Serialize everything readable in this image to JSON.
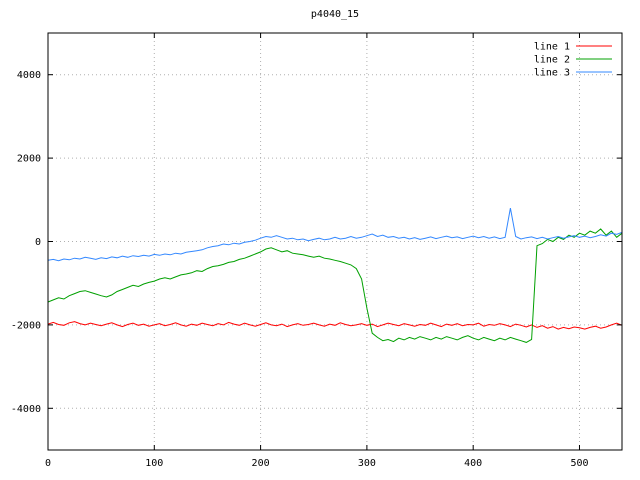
{
  "chart_data": {
    "type": "line",
    "title": "p4040_15",
    "xlabel": "",
    "ylabel": "",
    "xlim": [
      0,
      540
    ],
    "ylim": [
      -5000,
      5000
    ],
    "x_ticks": [
      0,
      100,
      200,
      300,
      400,
      500
    ],
    "y_ticks": [
      -4000,
      -2000,
      0,
      2000,
      4000
    ],
    "grid": true,
    "grid_style": "dotted",
    "legend_position": "top-right-inside",
    "x_start": 0,
    "x_step": 5,
    "colors": {
      "border": "#000000",
      "grid": "#b0b0b0",
      "background": "#ffffff"
    },
    "series": [
      {
        "name": "line 1",
        "color": "#ff0000",
        "values": [
          -1980,
          -1940,
          -1990,
          -2010,
          -1950,
          -1920,
          -1970,
          -2000,
          -1960,
          -1990,
          -2020,
          -1980,
          -1950,
          -2000,
          -2040,
          -1990,
          -1960,
          -2010,
          -1980,
          -2030,
          -2000,
          -1970,
          -2020,
          -1990,
          -1950,
          -2000,
          -2030,
          -1980,
          -2010,
          -1960,
          -1990,
          -2020,
          -1970,
          -2000,
          -1940,
          -1980,
          -2010,
          -1960,
          -2000,
          -2030,
          -1990,
          -1950,
          -2000,
          -2020,
          -1980,
          -2040,
          -2000,
          -1970,
          -2010,
          -1990,
          -1960,
          -2000,
          -2030,
          -1980,
          -2010,
          -1950,
          -1990,
          -2020,
          -2000,
          -1970,
          -2010,
          -1980,
          -2040,
          -2000,
          -1960,
          -1990,
          -2020,
          -1970,
          -2000,
          -2030,
          -1990,
          -2010,
          -1960,
          -2000,
          -2040,
          -1980,
          -2010,
          -1970,
          -2020,
          -1990,
          -2000,
          -1960,
          -2030,
          -1990,
          -2010,
          -1970,
          -2000,
          -2040,
          -1980,
          -2010,
          -2050,
          -2000,
          -2060,
          -2020,
          -2080,
          -2040,
          -2100,
          -2060,
          -2090,
          -2050,
          -2070,
          -2100,
          -2060,
          -2030,
          -2080,
          -2050,
          -2000,
          -1960,
          -2010
        ]
      },
      {
        "name": "line 2",
        "color": "#00a000",
        "values": [
          -1450,
          -1400,
          -1350,
          -1380,
          -1300,
          -1250,
          -1200,
          -1180,
          -1220,
          -1260,
          -1300,
          -1330,
          -1280,
          -1200,
          -1150,
          -1100,
          -1050,
          -1080,
          -1020,
          -980,
          -950,
          -900,
          -870,
          -900,
          -850,
          -800,
          -780,
          -750,
          -700,
          -720,
          -650,
          -600,
          -580,
          -550,
          -500,
          -480,
          -430,
          -400,
          -350,
          -300,
          -250,
          -180,
          -150,
          -200,
          -250,
          -220,
          -280,
          -300,
          -320,
          -350,
          -380,
          -350,
          -400,
          -420,
          -450,
          -480,
          -520,
          -560,
          -650,
          -900,
          -1600,
          -2200,
          -2300,
          -2380,
          -2350,
          -2400,
          -2320,
          -2360,
          -2300,
          -2340,
          -2280,
          -2320,
          -2360,
          -2300,
          -2340,
          -2280,
          -2320,
          -2360,
          -2300,
          -2260,
          -2320,
          -2360,
          -2300,
          -2340,
          -2380,
          -2320,
          -2360,
          -2300,
          -2340,
          -2380,
          -2420,
          -2350,
          -100,
          -50,
          50,
          0,
          100,
          50,
          150,
          100,
          200,
          150,
          250,
          200,
          300,
          150,
          250,
          100,
          200
        ]
      },
      {
        "name": "line 3",
        "color": "#3388ff",
        "values": [
          -450,
          -430,
          -460,
          -420,
          -440,
          -400,
          -420,
          -380,
          -400,
          -430,
          -390,
          -410,
          -370,
          -390,
          -350,
          -380,
          -340,
          -360,
          -330,
          -350,
          -310,
          -330,
          -300,
          -320,
          -280,
          -300,
          -260,
          -240,
          -220,
          -200,
          -150,
          -120,
          -100,
          -60,
          -80,
          -40,
          -60,
          -20,
          0,
          30,
          80,
          120,
          100,
          140,
          100,
          60,
          80,
          40,
          60,
          20,
          50,
          80,
          40,
          60,
          100,
          60,
          80,
          120,
          80,
          100,
          140,
          180,
          120,
          150,
          100,
          120,
          80,
          100,
          60,
          90,
          50,
          80,
          110,
          70,
          100,
          130,
          90,
          110,
          70,
          100,
          130,
          90,
          120,
          80,
          110,
          70,
          100,
          800,
          120,
          60,
          90,
          110,
          70,
          100,
          60,
          90,
          120,
          80,
          110,
          140,
          100,
          130,
          90,
          120,
          160,
          130,
          200,
          170,
          220
        ]
      }
    ]
  }
}
